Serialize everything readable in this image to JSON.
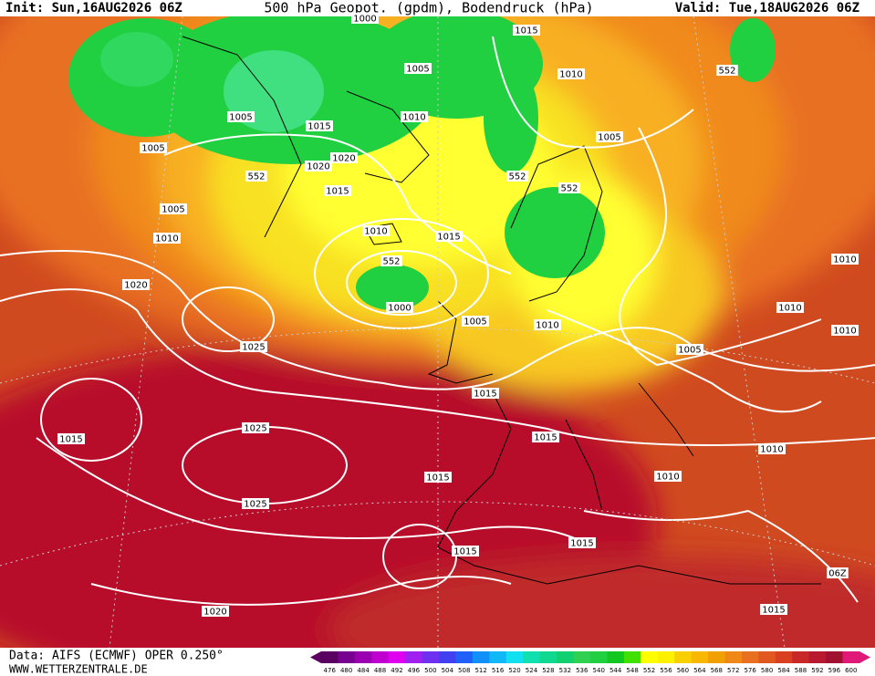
{
  "header": {
    "init": "Init: Sun,16AUG2026 06Z",
    "title": "500 hPa Geopot. (gpdm), Bodendruck (hPa)",
    "valid": "Valid: Tue,18AUG2026 06Z"
  },
  "footer": {
    "source": "Data: AIFS (ECMWF) OPER 0.250°",
    "website": "WWW.WETTERZENTRALE.DE"
  },
  "colorbar": {
    "labels": [
      476,
      480,
      484,
      488,
      492,
      496,
      500,
      504,
      508,
      512,
      516,
      520,
      524,
      528,
      532,
      536,
      540,
      544,
      548,
      552,
      556,
      560,
      564,
      568,
      572,
      576,
      580,
      584,
      588,
      592,
      596,
      600
    ],
    "colors": [
      "#5a0060",
      "#780090",
      "#9a00b0",
      "#c000d0",
      "#e000f0",
      "#a020f0",
      "#7030f0",
      "#4040f0",
      "#2060f8",
      "#1090f8",
      "#10b8f8",
      "#10e0f0",
      "#10e0b0",
      "#10d890",
      "#10d070",
      "#30d050",
      "#20d040",
      "#10c820",
      "#40e000",
      "#ffff00",
      "#fff000",
      "#f8d000",
      "#f8b800",
      "#f0a000",
      "#f08818",
      "#e87020",
      "#e05820",
      "#d84020",
      "#c82828",
      "#b81830",
      "#a01030",
      "#e01878"
    ]
  },
  "isobar_labels": [
    "1000",
    "1015",
    "1010",
    "552",
    "1005",
    "1010",
    "1005",
    "1015",
    "1005",
    "1020",
    "1020",
    "552",
    "1015",
    "1005",
    "552",
    "552",
    "1005",
    "1010",
    "1010",
    "1015",
    "552",
    "1010",
    "1020",
    "1000",
    "1005",
    "1010",
    "1010",
    "1010",
    "1025",
    "1005",
    "1015",
    "1015",
    "1025",
    "1015",
    "1010",
    "1015",
    "1010",
    "1025",
    "1015",
    "1015",
    "06Z",
    "1015",
    "1020"
  ]
}
